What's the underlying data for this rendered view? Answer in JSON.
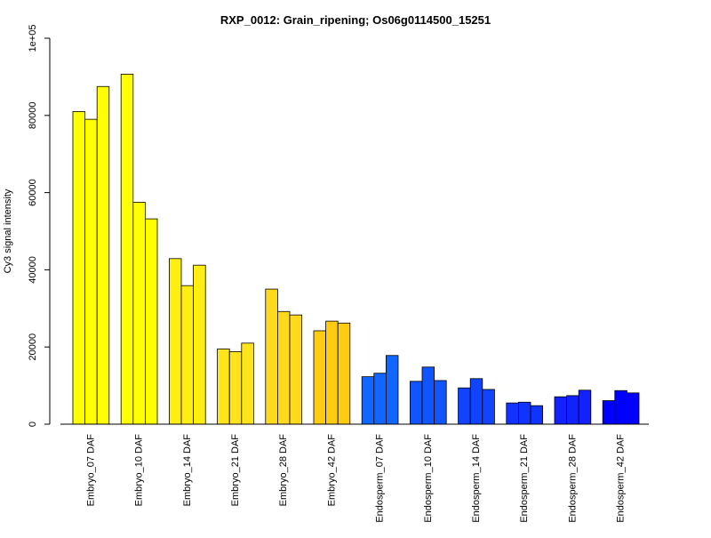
{
  "chart_data": {
    "type": "bar",
    "title": "RXP_0012: Grain_ripening; Os06g0114500_15251",
    "xlabel": "",
    "ylabel": "Cy3 signal intensity",
    "ylim": [
      0,
      100000
    ],
    "yticks": [
      0,
      20000,
      40000,
      60000,
      80000,
      100000
    ],
    "ytick_labels": [
      "0",
      "20000",
      "40000",
      "60000",
      "80000",
      "1e+05"
    ],
    "grid": false,
    "legend": "none",
    "bars_per_group": 3,
    "categories": [
      "Embryo_07 DAF",
      "Embryo_10 DAF",
      "Embryo_14 DAF",
      "Embryo_21 DAF",
      "Embryo_28 DAF",
      "Embryo_42 DAF",
      "Endosperm_07 DAF",
      "Endosperm_10 DAF",
      "Endosperm_14 DAF",
      "Endosperm_21 DAF",
      "Endosperm_28 DAF",
      "Endosperm_42 DAF"
    ],
    "group_colors": [
      "#ffff00",
      "#ffff00",
      "#ffee11",
      "#ffe41b",
      "#ffd91b",
      "#ffcc11",
      "#1166ff",
      "#1155ff",
      "#1144ff",
      "#1133ff",
      "#1122ff",
      "#0000ff"
    ],
    "bar_border_color": "#000000",
    "groups": [
      {
        "category": "Embryo_07 DAF",
        "values": [
          81000,
          79000,
          87500
        ]
      },
      {
        "category": "Embryo_10 DAF",
        "values": [
          90700,
          57500,
          53200
        ]
      },
      {
        "category": "Embryo_14 DAF",
        "values": [
          42900,
          35900,
          41200
        ]
      },
      {
        "category": "Embryo_21 DAF",
        "values": [
          19500,
          18800,
          21000
        ]
      },
      {
        "category": "Embryo_28 DAF",
        "values": [
          35000,
          29200,
          28300
        ]
      },
      {
        "category": "Embryo_42 DAF",
        "values": [
          24200,
          26700,
          26200
        ]
      },
      {
        "category": "Endosperm_07 DAF",
        "values": [
          12300,
          13200,
          17800
        ]
      },
      {
        "category": "Endosperm_10 DAF",
        "values": [
          11100,
          14800,
          11300
        ]
      },
      {
        "category": "Endosperm_14 DAF",
        "values": [
          9400,
          11800,
          9000
        ]
      },
      {
        "category": "Endosperm_21 DAF",
        "values": [
          5500,
          5700,
          4800
        ]
      },
      {
        "category": "Endosperm_28 DAF",
        "values": [
          7100,
          7400,
          8800
        ]
      },
      {
        "category": "Endosperm_42 DAF",
        "values": [
          6100,
          8700,
          8100
        ]
      }
    ]
  }
}
